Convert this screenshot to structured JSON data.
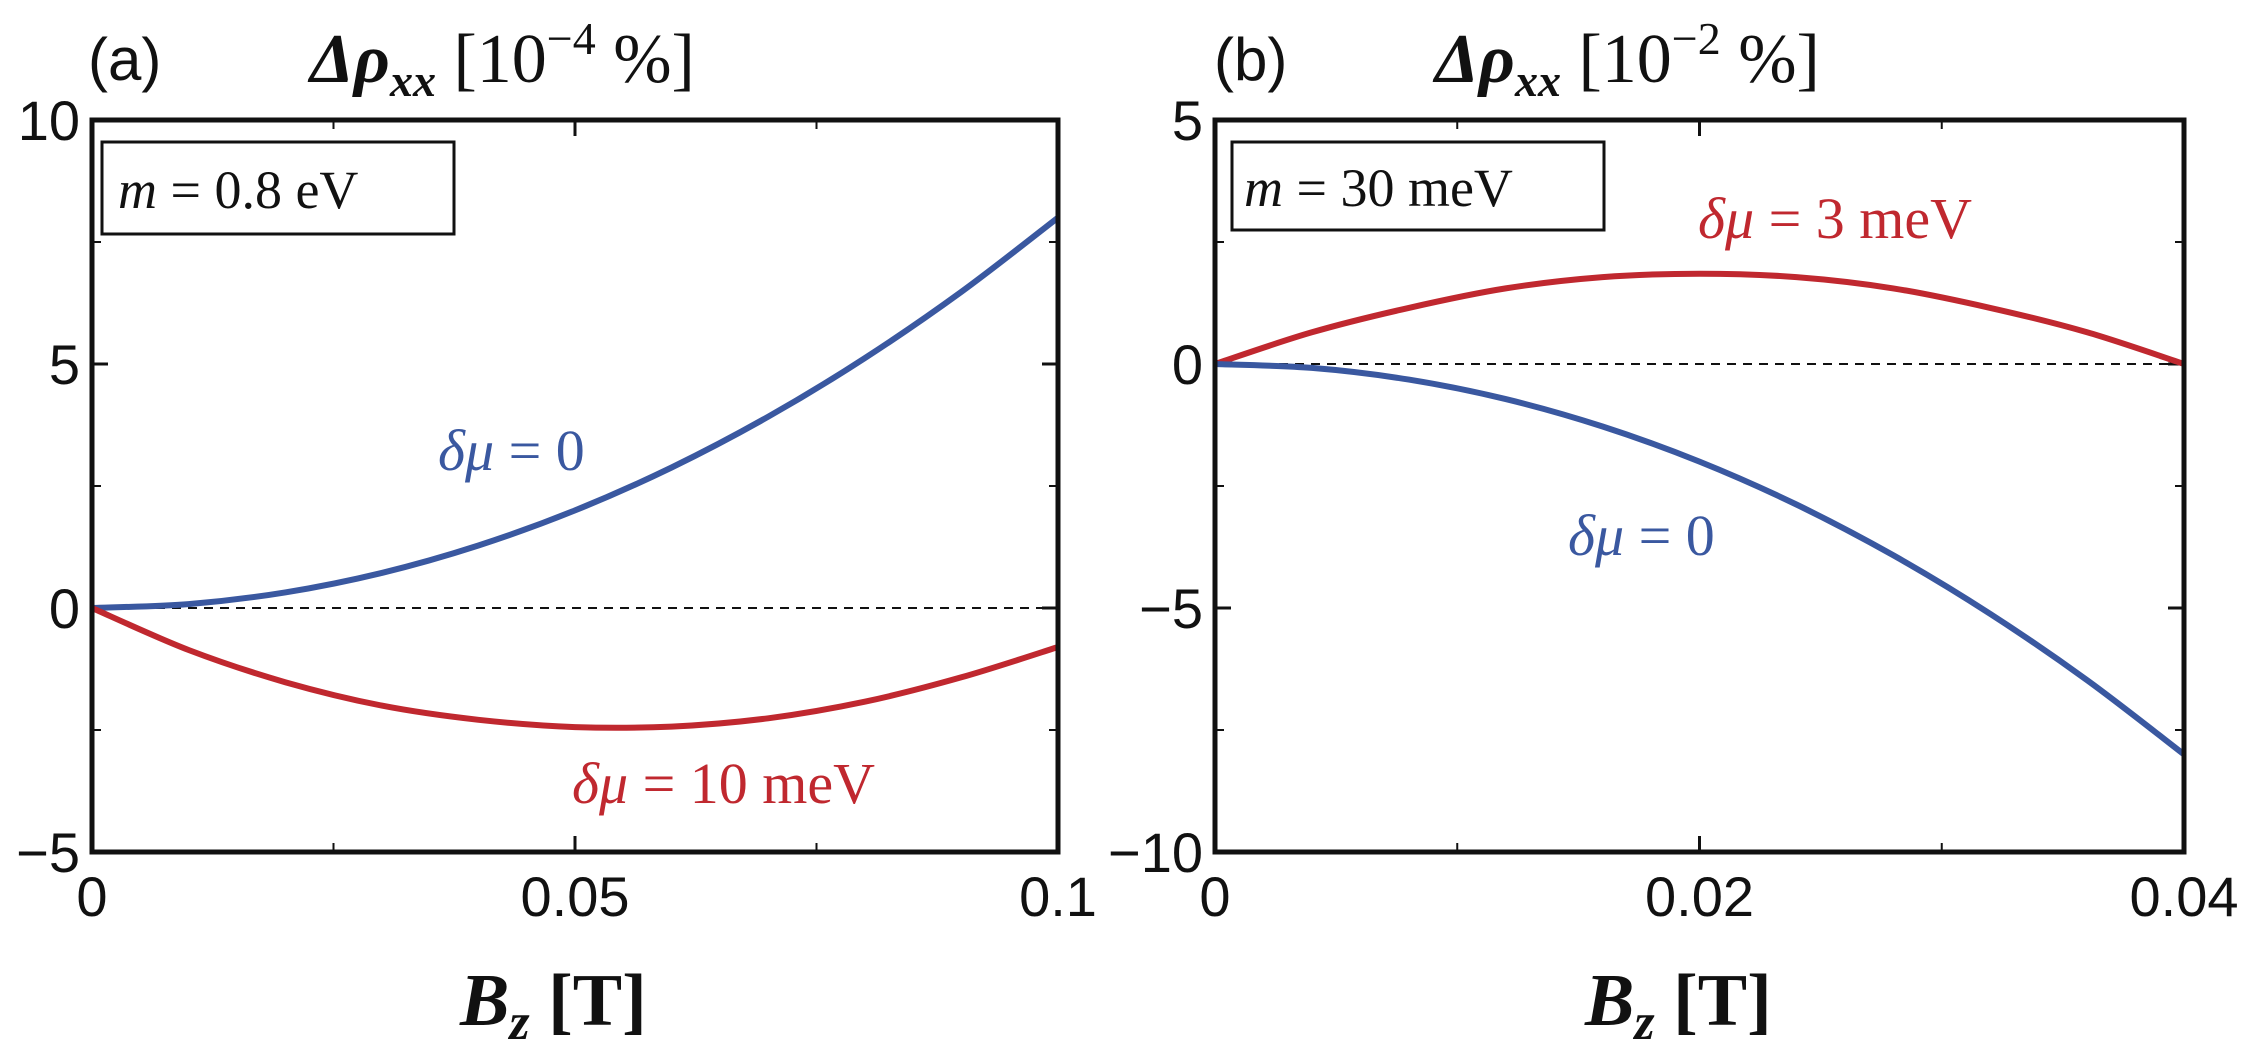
{
  "chart_data": [
    {
      "type": "line",
      "panel_label": "(a)",
      "title": {
        "main": "Δρ",
        "sub": "xx",
        "unit_pre": " [10",
        "unit_exp": "−4",
        "unit_post": " %]"
      },
      "xlabel": {
        "main": "B",
        "sub": "z",
        "unit": " [T]"
      },
      "xlim": [
        0,
        0.1
      ],
      "ylim": [
        -5,
        10
      ],
      "xticks": [
        0,
        0.05,
        0.1
      ],
      "xtick_labels": [
        "0",
        "0.05",
        "0.1"
      ],
      "yticks": [
        -5,
        0,
        5,
        10
      ],
      "ytick_labels": [
        "−5",
        "0",
        "5",
        "10"
      ],
      "reference_line": 0,
      "annotation_box": {
        "text": "m = 0.8 eV",
        "var": "m",
        "rest": " = 0.8 eV"
      },
      "series": [
        {
          "name": "δμ = 0",
          "label_main": "δμ",
          "label_rest": " = 0",
          "color": "#3a58a0",
          "x": [
            0,
            0.01,
            0.02,
            0.03,
            0.04,
            0.05,
            0.06,
            0.07,
            0.08,
            0.09,
            0.1
          ],
          "y": [
            0,
            0.08,
            0.32,
            0.72,
            1.28,
            2.0,
            2.88,
            3.92,
            5.12,
            6.48,
            8.0
          ]
        },
        {
          "name": "δμ = 10 meV",
          "label_main": "δμ",
          "label_rest": " = 10 meV",
          "color": "#c0282f",
          "x": [
            0,
            0.01,
            0.02,
            0.03,
            0.04,
            0.05,
            0.06,
            0.07,
            0.08,
            0.09,
            0.1
          ],
          "y": [
            0,
            -0.86,
            -1.52,
            -2.0,
            -2.29,
            -2.44,
            -2.43,
            -2.26,
            -1.92,
            -1.42,
            -0.8
          ]
        }
      ]
    },
    {
      "type": "line",
      "panel_label": "(b)",
      "title": {
        "main": "Δρ",
        "sub": "xx",
        "unit_pre": " [10",
        "unit_exp": "−2",
        "unit_post": " %]"
      },
      "xlabel": {
        "main": "B",
        "sub": "z",
        "unit": " [T]"
      },
      "xlim": [
        0,
        0.04
      ],
      "ylim": [
        -10,
        5
      ],
      "xticks": [
        0,
        0.02,
        0.04
      ],
      "xtick_labels": [
        "0",
        "0.02",
        "0.04"
      ],
      "yticks": [
        -10,
        -5,
        0,
        5
      ],
      "ytick_labels": [
        "−10",
        "−5",
        "0",
        "5"
      ],
      "reference_line": 0,
      "annotation_box": {
        "text": "m = 30 meV",
        "var": "m",
        "rest": " = 30 meV"
      },
      "series": [
        {
          "name": "δμ = 3 meV",
          "label_main": "δμ",
          "label_rest": " = 3 meV",
          "color": "#c0282f",
          "x": [
            0,
            0.004,
            0.008,
            0.012,
            0.016,
            0.02,
            0.024,
            0.028,
            0.032,
            0.036,
            0.04
          ],
          "y": [
            0,
            0.65,
            1.15,
            1.55,
            1.78,
            1.85,
            1.78,
            1.55,
            1.15,
            0.65,
            0
          ]
        },
        {
          "name": "δμ = 0",
          "label_main": "δμ",
          "label_rest": " = 0",
          "color": "#3a58a0",
          "x": [
            0,
            0.004,
            0.008,
            0.012,
            0.016,
            0.02,
            0.024,
            0.028,
            0.032,
            0.036,
            0.04
          ],
          "y": [
            0,
            -0.08,
            -0.32,
            -0.72,
            -1.28,
            -2.0,
            -2.88,
            -3.92,
            -5.12,
            -6.48,
            -8.0
          ]
        }
      ]
    }
  ]
}
